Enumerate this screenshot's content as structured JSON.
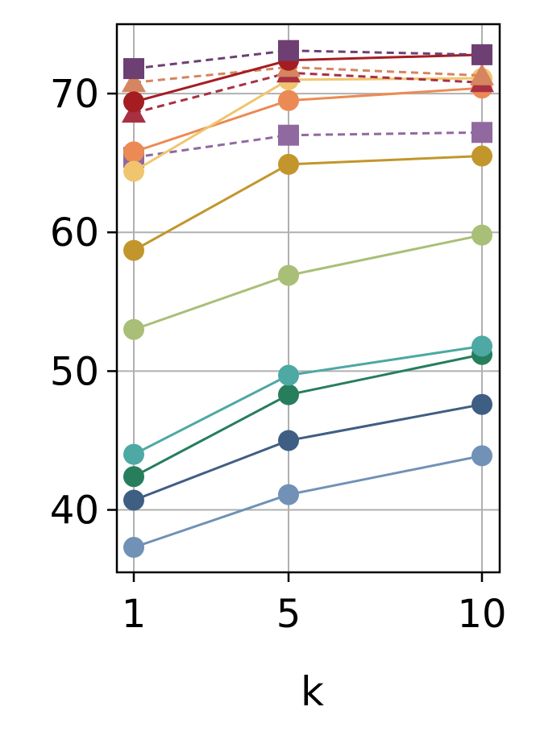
{
  "chart_data": {
    "type": "line",
    "title": "",
    "xlabel": "k",
    "ylabel": "",
    "x": [
      1,
      5,
      10
    ],
    "x_tick_labels": [
      "1",
      "5",
      "10"
    ],
    "ylim": [
      35.5,
      75
    ],
    "y_ticks": [
      40,
      50,
      60,
      70
    ],
    "y_tick_labels": [
      "40",
      "50",
      "60",
      "70"
    ],
    "grid": true,
    "legend": "none",
    "series": [
      {
        "values": [
          71.8,
          73.1,
          72.8
        ],
        "color": "#6e3f73",
        "marker": "square",
        "dashed": true
      },
      {
        "values": [
          69.4,
          72.4,
          72.8
        ],
        "color": "#a51d21",
        "marker": "circle",
        "dashed": false
      },
      {
        "values": [
          70.8,
          71.9,
          71.3
        ],
        "color": "#d5855f",
        "marker": "triangle",
        "dashed": true
      },
      {
        "values": [
          68.6,
          71.5,
          70.8
        ],
        "color": "#a83043",
        "marker": "triangle",
        "dashed": true
      },
      {
        "values": [
          64.4,
          71.0,
          71.1
        ],
        "color": "#f1c56e",
        "marker": "circle",
        "dashed": false
      },
      {
        "values": [
          65.8,
          69.5,
          70.4
        ],
        "color": "#ec8a55",
        "marker": "circle",
        "dashed": false
      },
      {
        "values": [
          65.4,
          67.0,
          67.2
        ],
        "color": "#9169a1",
        "marker": "square",
        "dashed": true
      },
      {
        "values": [
          58.7,
          64.9,
          65.5
        ],
        "color": "#c2962c",
        "marker": "circle",
        "dashed": false
      },
      {
        "values": [
          53.0,
          56.9,
          59.8
        ],
        "color": "#a9bf77",
        "marker": "circle",
        "dashed": false
      },
      {
        "values": [
          44.0,
          49.7,
          51.8
        ],
        "color": "#4ea8a4",
        "marker": "circle",
        "dashed": false
      },
      {
        "values": [
          42.4,
          48.3,
          51.2
        ],
        "color": "#267e5c",
        "marker": "circle",
        "dashed": false
      },
      {
        "values": [
          40.7,
          45.0,
          47.6
        ],
        "color": "#3f5e84",
        "marker": "circle",
        "dashed": false
      },
      {
        "values": [
          37.3,
          41.1,
          43.9
        ],
        "color": "#7191b6",
        "marker": "circle",
        "dashed": false
      }
    ]
  }
}
